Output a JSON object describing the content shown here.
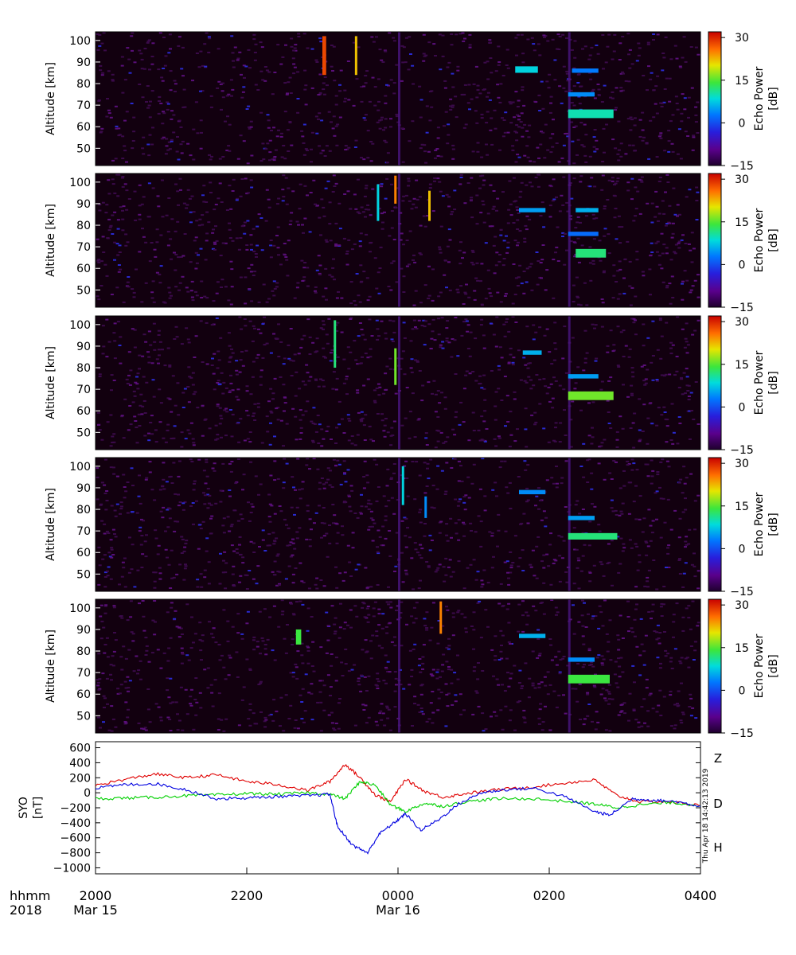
{
  "chart_data": [
    {
      "type": "heatmap",
      "panel": 1,
      "ylabel": "Altitude [km]",
      "yticks": [
        50,
        60,
        70,
        80,
        90,
        100
      ],
      "ylim": [
        42,
        104
      ],
      "colorbar": {
        "label_line1": "Echo Power",
        "label_line2": "[dB]",
        "ticks": [
          "30",
          "15",
          "0",
          "−15"
        ],
        "range": [
          -15,
          32
        ]
      },
      "features": [
        {
          "x0": -1.0,
          "x1": -0.95,
          "y0": 84,
          "y1": 102,
          "value": 28
        },
        {
          "x0": -0.57,
          "x1": -0.54,
          "y0": 84,
          "y1": 102,
          "value": 22
        },
        {
          "x0": 1.55,
          "x1": 1.85,
          "y0": 85,
          "y1": 88,
          "value": 8
        },
        {
          "x0": 2.25,
          "x1": 2.6,
          "y0": 74,
          "y1": 76,
          "value": 4
        },
        {
          "x0": 2.25,
          "x1": 2.85,
          "y0": 64,
          "y1": 68,
          "value": 10
        },
        {
          "x0": 2.3,
          "x1": 2.65,
          "y0": 85,
          "y1": 87,
          "value": 3
        }
      ]
    },
    {
      "type": "heatmap",
      "panel": 2,
      "ylabel": "Altitude [km]",
      "yticks": [
        50,
        60,
        70,
        80,
        90,
        100
      ],
      "ylim": [
        42,
        104
      ],
      "colorbar": {
        "label_line1": "Echo Power",
        "label_line2": "[dB]",
        "ticks": [
          "30",
          "15",
          "0",
          "−15"
        ],
        "range": [
          -15,
          32
        ]
      },
      "features": [
        {
          "x0": -0.05,
          "x1": -0.02,
          "y0": 90,
          "y1": 103,
          "value": 25
        },
        {
          "x0": -0.28,
          "x1": -0.25,
          "y0": 82,
          "y1": 99,
          "value": 8
        },
        {
          "x0": 0.4,
          "x1": 0.43,
          "y0": 82,
          "y1": 96,
          "value": 22
        },
        {
          "x0": 1.6,
          "x1": 1.95,
          "y0": 86,
          "y1": 88,
          "value": 5
        },
        {
          "x0": 2.35,
          "x1": 2.65,
          "y0": 86,
          "y1": 88,
          "value": 6
        },
        {
          "x0": 2.25,
          "x1": 2.65,
          "y0": 75,
          "y1": 77,
          "value": 2
        },
        {
          "x0": 2.35,
          "x1": 2.75,
          "y0": 65,
          "y1": 69,
          "value": 12
        }
      ]
    },
    {
      "type": "heatmap",
      "panel": 3,
      "ylabel": "Altitude [km]",
      "yticks": [
        50,
        60,
        70,
        80,
        90,
        100
      ],
      "ylim": [
        42,
        104
      ],
      "colorbar": {
        "label_line1": "Echo Power",
        "label_line2": "[dB]",
        "ticks": [
          "30",
          "15",
          "0",
          "−15"
        ],
        "range": [
          -15,
          32
        ]
      },
      "features": [
        {
          "x0": -0.05,
          "x1": -0.02,
          "y0": 72,
          "y1": 89,
          "value": 16
        },
        {
          "x0": -0.85,
          "x1": -0.82,
          "y0": 80,
          "y1": 102,
          "value": 12
        },
        {
          "x0": 1.65,
          "x1": 1.9,
          "y0": 86,
          "y1": 88,
          "value": 6
        },
        {
          "x0": 2.25,
          "x1": 2.65,
          "y0": 75,
          "y1": 77,
          "value": 5
        },
        {
          "x0": 2.25,
          "x1": 2.85,
          "y0": 65,
          "y1": 69,
          "value": 16
        }
      ]
    },
    {
      "type": "heatmap",
      "panel": 4,
      "ylabel": "Altitude [km]",
      "yticks": [
        50,
        60,
        70,
        80,
        90,
        100
      ],
      "ylim": [
        42,
        104
      ],
      "colorbar": {
        "label_line1": "Echo Power",
        "label_line2": "[dB]",
        "ticks": [
          "30",
          "15",
          "0",
          "−15"
        ],
        "range": [
          -15,
          32
        ]
      },
      "features": [
        {
          "x0": 0.05,
          "x1": 0.08,
          "y0": 82,
          "y1": 100,
          "value": 8
        },
        {
          "x0": 0.35,
          "x1": 0.38,
          "y0": 76,
          "y1": 86,
          "value": 4
        },
        {
          "x0": 1.6,
          "x1": 1.95,
          "y0": 87,
          "y1": 89,
          "value": 4
        },
        {
          "x0": 2.25,
          "x1": 2.6,
          "y0": 75,
          "y1": 77,
          "value": 5
        },
        {
          "x0": 2.25,
          "x1": 2.9,
          "y0": 66,
          "y1": 69,
          "value": 12
        }
      ]
    },
    {
      "type": "heatmap",
      "panel": 5,
      "ylabel": "Altitude [km]",
      "yticks": [
        50,
        60,
        70,
        80,
        90,
        100
      ],
      "ylim": [
        42,
        104
      ],
      "colorbar": {
        "label_line1": "Echo Power",
        "label_line2": "[dB]",
        "ticks": [
          "30",
          "15",
          "0",
          "−15"
        ],
        "range": [
          -15,
          32
        ]
      },
      "features": [
        {
          "x0": -1.35,
          "x1": -1.28,
          "y0": 83,
          "y1": 90,
          "value": 14
        },
        {
          "x0": 0.55,
          "x1": 0.58,
          "y0": 88,
          "y1": 103,
          "value": 25
        },
        {
          "x0": 1.6,
          "x1": 1.95,
          "y0": 86,
          "y1": 88,
          "value": 6
        },
        {
          "x0": 2.25,
          "x1": 2.6,
          "y0": 75,
          "y1": 77,
          "value": 4
        },
        {
          "x0": 2.25,
          "x1": 2.8,
          "y0": 65,
          "y1": 69,
          "value": 14
        }
      ]
    },
    {
      "type": "line",
      "ylabel_line1": "SYO",
      "ylabel_line2": "[nT]",
      "yticks": [
        600,
        400,
        200,
        0,
        -200,
        -400,
        -600,
        -800,
        -1000
      ],
      "ylim": [
        -1080,
        680
      ],
      "series": [
        {
          "name": "Z",
          "color": "#e00000",
          "points": [
            [
              -4,
              100
            ],
            [
              -3.6,
              180
            ],
            [
              -3.2,
              250
            ],
            [
              -2.8,
              200
            ],
            [
              -2.4,
              240
            ],
            [
              -2,
              150
            ],
            [
              -1.6,
              110
            ],
            [
              -1.2,
              30
            ],
            [
              -0.9,
              150
            ],
            [
              -0.7,
              380
            ],
            [
              -0.5,
              200
            ],
            [
              -0.3,
              -30
            ],
            [
              -0.1,
              -120
            ],
            [
              0.1,
              180
            ],
            [
              0.35,
              20
            ],
            [
              0.6,
              -60
            ],
            [
              0.9,
              -10
            ],
            [
              1.3,
              40
            ],
            [
              1.8,
              80
            ],
            [
              2.3,
              140
            ],
            [
              2.6,
              170
            ],
            [
              2.9,
              -40
            ],
            [
              3.2,
              -120
            ],
            [
              3.6,
              -120
            ],
            [
              4,
              -170
            ]
          ]
        },
        {
          "name": "D",
          "color": "#00d000",
          "points": [
            [
              -4,
              -80
            ],
            [
              -3.6,
              -70
            ],
            [
              -3.2,
              -60
            ],
            [
              -2.8,
              -40
            ],
            [
              -2.4,
              -30
            ],
            [
              -2,
              -10
            ],
            [
              -1.6,
              -20
            ],
            [
              -1.2,
              0
            ],
            [
              -0.9,
              -20
            ],
            [
              -0.7,
              -80
            ],
            [
              -0.5,
              150
            ],
            [
              -0.3,
              100
            ],
            [
              -0.1,
              -160
            ],
            [
              0.1,
              -250
            ],
            [
              0.35,
              -140
            ],
            [
              0.6,
              -180
            ],
            [
              0.9,
              -120
            ],
            [
              1.3,
              -80
            ],
            [
              1.8,
              -80
            ],
            [
              2.3,
              -120
            ],
            [
              2.6,
              -150
            ],
            [
              2.9,
              -200
            ],
            [
              3.2,
              -160
            ],
            [
              3.6,
              -130
            ],
            [
              4,
              -170
            ]
          ]
        },
        {
          "name": "H",
          "color": "#0000e0",
          "points": [
            [
              -4,
              60
            ],
            [
              -3.6,
              110
            ],
            [
              -3.2,
              120
            ],
            [
              -2.8,
              40
            ],
            [
              -2.4,
              -80
            ],
            [
              -2,
              -70
            ],
            [
              -1.6,
              -50
            ],
            [
              -1.2,
              -40
            ],
            [
              -0.9,
              -20
            ],
            [
              -0.8,
              -450
            ],
            [
              -0.6,
              -700
            ],
            [
              -0.4,
              -800
            ],
            [
              -0.25,
              -550
            ],
            [
              -0.05,
              -400
            ],
            [
              0.1,
              -280
            ],
            [
              0.3,
              -500
            ],
            [
              0.55,
              -350
            ],
            [
              0.8,
              -150
            ],
            [
              1.1,
              0
            ],
            [
              1.4,
              40
            ],
            [
              1.8,
              60
            ],
            [
              2.2,
              -50
            ],
            [
              2.6,
              -250
            ],
            [
              2.8,
              -300
            ],
            [
              3.1,
              -80
            ],
            [
              3.4,
              -100
            ],
            [
              3.7,
              -120
            ],
            [
              4,
              -180
            ]
          ]
        }
      ]
    }
  ],
  "xaxis": {
    "row1_label": "hhmm",
    "row2_label": "2018",
    "ticks": [
      {
        "x": -4,
        "time": "2000",
        "date": "Mar 15"
      },
      {
        "x": -2,
        "time": "2200",
        "date": ""
      },
      {
        "x": 0,
        "time": "0000",
        "date": "Mar 16"
      },
      {
        "x": 2,
        "time": "0200",
        "date": ""
      },
      {
        "x": 4,
        "time": "0400",
        "date": ""
      }
    ],
    "xlim": [
      -4,
      4
    ]
  },
  "timestamp": "Thu Apr 18 14:42:13 2019"
}
